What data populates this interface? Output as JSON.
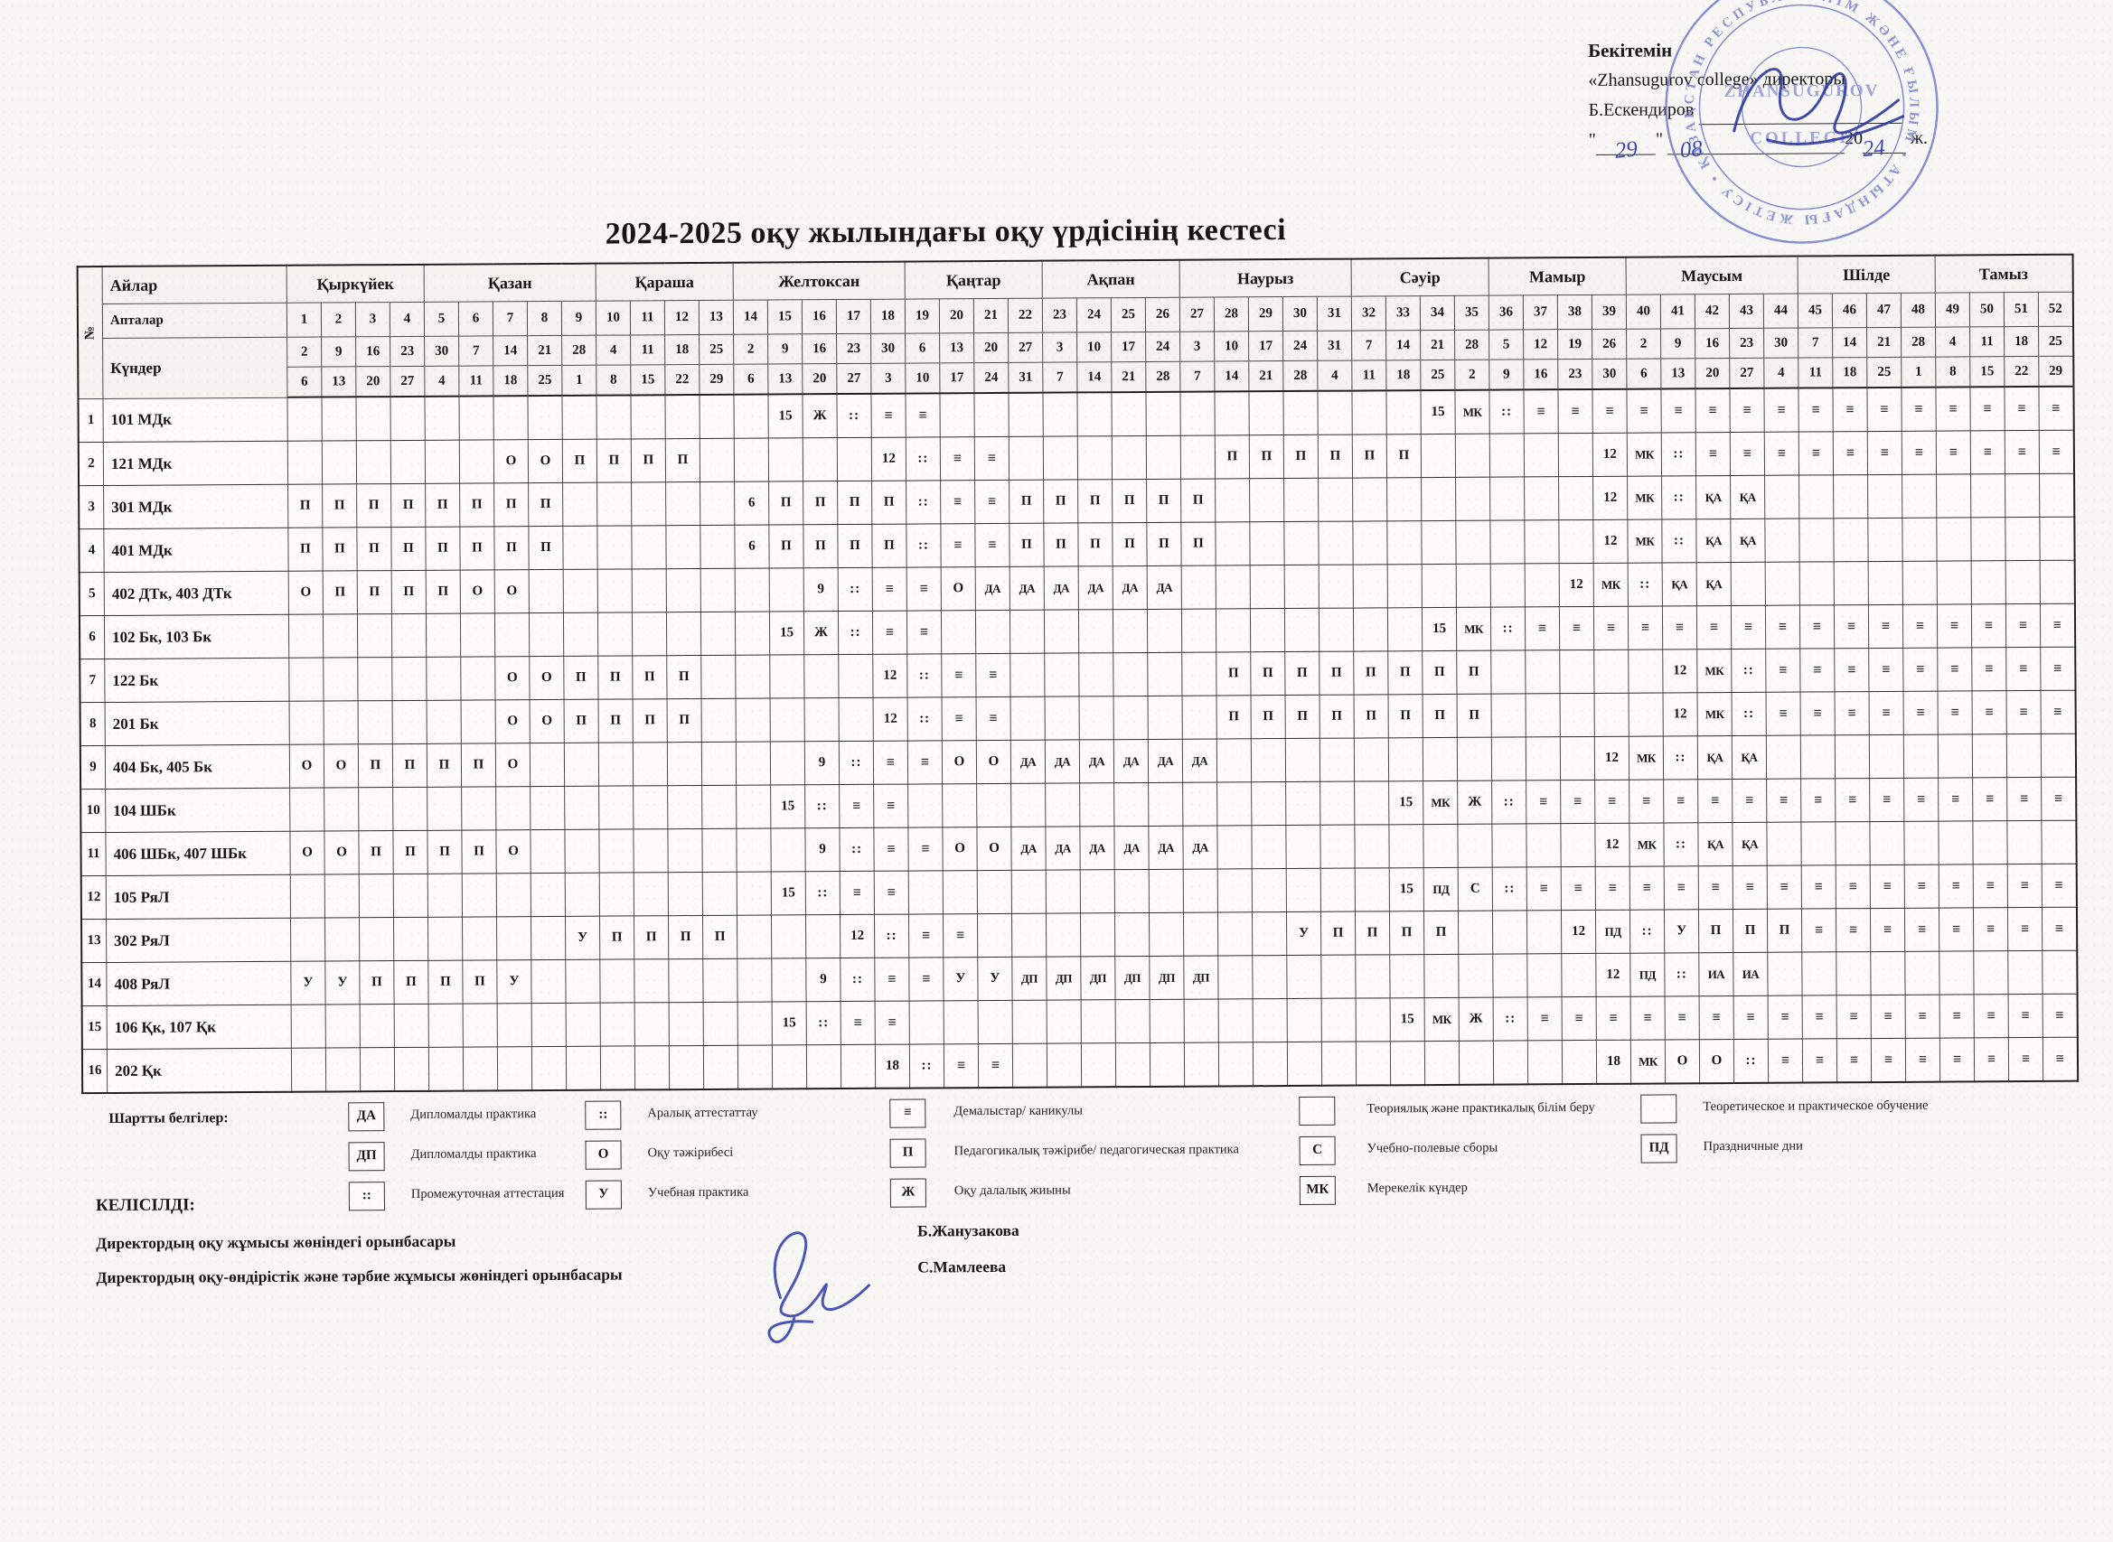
{
  "approval": {
    "approve_word": "Бекітемін",
    "org_line": "«Zhansugurov college» директоры",
    "director_name": "Б.Ескендиров",
    "hand_day": "29",
    "hand_month": "08",
    "year_prefix": "20",
    "hand_year": "24",
    "year_suffix": "ж."
  },
  "stamp": {
    "ring_text": "БІЛІМ ЖӘНЕ ҒЫЛЫМ • АТЫНДАҒЫ ЖЕТІСУ • ҚАЗАҚСТАН РЕСПУБЛИКАСЫ •",
    "center_text_1": "ZHANSUGUROV",
    "center_text_2": "COLLEGE"
  },
  "title": "2024-2025 оқу жылындағы оқу үрдісінің кестесі",
  "table": {
    "corner_label": "№",
    "side_months": "Айлар",
    "side_weeks": "Апталар",
    "side_days": "Күндер",
    "months": [
      {
        "label": "Қыркүйек",
        "span": 4
      },
      {
        "label": "Қазан",
        "span": 5
      },
      {
        "label": "Қараша",
        "span": 4
      },
      {
        "label": "Желтоксан",
        "span": 5
      },
      {
        "label": "Қаңтар",
        "span": 4
      },
      {
        "label": "Ақпан",
        "span": 4
      },
      {
        "label": "Наурыз",
        "span": 5
      },
      {
        "label": "Сәуір",
        "span": 4
      },
      {
        "label": "Мамыр",
        "span": 4
      },
      {
        "label": "Маусым",
        "span": 5
      },
      {
        "label": "Шілде",
        "span": 4
      },
      {
        "label": "Тамыз",
        "span": 4
      }
    ],
    "week_numbers": [
      1,
      2,
      3,
      4,
      5,
      6,
      7,
      8,
      9,
      10,
      11,
      12,
      13,
      14,
      15,
      16,
      17,
      18,
      19,
      20,
      21,
      22,
      23,
      24,
      25,
      26,
      27,
      28,
      29,
      30,
      31,
      32,
      33,
      34,
      35,
      36,
      37,
      38,
      39,
      40,
      41,
      42,
      43,
      44,
      45,
      46,
      47,
      48,
      49,
      50,
      51,
      52
    ],
    "week_start_dates": [
      2,
      9,
      16,
      23,
      30,
      7,
      14,
      21,
      28,
      4,
      11,
      18,
      25,
      2,
      9,
      16,
      23,
      30,
      6,
      13,
      20,
      27,
      3,
      10,
      17,
      24,
      3,
      10,
      17,
      24,
      31,
      7,
      14,
      21,
      28,
      5,
      12,
      19,
      26,
      2,
      9,
      16,
      23,
      30,
      7,
      14,
      21,
      28,
      4,
      11,
      18,
      25
    ],
    "week_end_dates": [
      6,
      13,
      20,
      27,
      4,
      11,
      18,
      25,
      1,
      8,
      15,
      22,
      29,
      6,
      13,
      20,
      27,
      3,
      10,
      17,
      24,
      31,
      7,
      14,
      21,
      28,
      7,
      14,
      21,
      28,
      4,
      11,
      18,
      25,
      2,
      9,
      16,
      23,
      30,
      6,
      13,
      20,
      27,
      4,
      11,
      18,
      25,
      1,
      8,
      15,
      22,
      29
    ],
    "rows": [
      {
        "num": "1",
        "label": "101 МДк",
        "cells": {
          "15": "15",
          "16": "Ж",
          "17": "::",
          "18": "≡",
          "19": "≡",
          "34": "15",
          "35": "МК",
          "36": "::",
          "37": "≡",
          "38": "≡",
          "39": "≡",
          "40": "≡",
          "41": "≡",
          "42": "≡",
          "43": "≡",
          "44": "≡",
          "45": "≡",
          "46": "≡",
          "47": "≡",
          "48": "≡",
          "49": "≡",
          "50": "≡",
          "51": "≡",
          "52": "≡"
        }
      },
      {
        "num": "2",
        "label": "121 МДк",
        "cells": {
          "7": "О",
          "8": "О",
          "9": "П",
          "10": "П",
          "11": "П",
          "12": "П",
          "18": "12",
          "19": "::",
          "20": "≡",
          "21": "≡",
          "28": "П",
          "29": "П",
          "30": "П",
          "31": "П",
          "32": "П",
          "33": "П",
          "39": "12",
          "40": "МК",
          "41": "::",
          "42": "≡",
          "43": "≡",
          "44": "≡",
          "45": "≡",
          "46": "≡",
          "47": "≡",
          "48": "≡",
          "49": "≡",
          "50": "≡",
          "51": "≡",
          "52": "≡"
        }
      },
      {
        "num": "3",
        "label": "301 МДк",
        "cells": {
          "1": "П",
          "2": "П",
          "3": "П",
          "4": "П",
          "5": "П",
          "6": "П",
          "7": "П",
          "8": "П",
          "14": "6",
          "15": "П",
          "16": "П",
          "17": "П",
          "18": "П",
          "19": "::",
          "20": "≡",
          "21": "≡",
          "22": "П",
          "23": "П",
          "24": "П",
          "25": "П",
          "26": "П",
          "27": "П",
          "39": "12",
          "40": "МК",
          "41": "::",
          "42": "ҚА",
          "43": "ҚА"
        }
      },
      {
        "num": "4",
        "label": "401 МДк",
        "cells": {
          "1": "П",
          "2": "П",
          "3": "П",
          "4": "П",
          "5": "П",
          "6": "П",
          "7": "П",
          "8": "П",
          "14": "6",
          "15": "П",
          "16": "П",
          "17": "П",
          "18": "П",
          "19": "::",
          "20": "≡",
          "21": "≡",
          "22": "П",
          "23": "П",
          "24": "П",
          "25": "П",
          "26": "П",
          "27": "П",
          "39": "12",
          "40": "МК",
          "41": "::",
          "42": "ҚА",
          "43": "ҚА"
        }
      },
      {
        "num": "5",
        "label": "402 ДТк, 403 ДТк",
        "cells": {
          "1": "О",
          "2": "П",
          "3": "П",
          "4": "П",
          "5": "П",
          "6": "О",
          "7": "О",
          "16": "9",
          "17": "::",
          "18": "≡",
          "19": "≡",
          "20": "О",
          "21": "ДА",
          "22": "ДА",
          "23": "ДА",
          "24": "ДА",
          "25": "ДА",
          "26": "ДА",
          "38": "12",
          "39": "МК",
          "40": "::",
          "41": "ҚА",
          "42": "ҚА"
        }
      },
      {
        "num": "6",
        "label": "102 Бк, 103 Бк",
        "cells": {
          "15": "15",
          "16": "Ж",
          "17": "::",
          "18": "≡",
          "19": "≡",
          "34": "15",
          "35": "МК",
          "36": "::",
          "37": "≡",
          "38": "≡",
          "39": "≡",
          "40": "≡",
          "41": "≡",
          "42": "≡",
          "43": "≡",
          "44": "≡",
          "45": "≡",
          "46": "≡",
          "47": "≡",
          "48": "≡",
          "49": "≡",
          "50": "≡",
          "51": "≡",
          "52": "≡"
        }
      },
      {
        "num": "7",
        "label": "122 Бк",
        "cells": {
          "7": "О",
          "8": "О",
          "9": "П",
          "10": "П",
          "11": "П",
          "12": "П",
          "18": "12",
          "19": "::",
          "20": "≡",
          "21": "≡",
          "28": "П",
          "29": "П",
          "30": "П",
          "31": "П",
          "32": "П",
          "33": "П",
          "34": "П",
          "35": "П",
          "41": "12",
          "42": "МК",
          "43": "::",
          "44": "≡",
          "45": "≡",
          "46": "≡",
          "47": "≡",
          "48": "≡",
          "49": "≡",
          "50": "≡",
          "51": "≡",
          "52": "≡"
        }
      },
      {
        "num": "8",
        "label": "201 Бк",
        "cells": {
          "7": "О",
          "8": "О",
          "9": "П",
          "10": "П",
          "11": "П",
          "12": "П",
          "18": "12",
          "19": "::",
          "20": "≡",
          "21": "≡",
          "28": "П",
          "29": "П",
          "30": "П",
          "31": "П",
          "32": "П",
          "33": "П",
          "34": "П",
          "35": "П",
          "41": "12",
          "42": "МК",
          "43": "::",
          "44": "≡",
          "45": "≡",
          "46": "≡",
          "47": "≡",
          "48": "≡",
          "49": "≡",
          "50": "≡",
          "51": "≡",
          "52": "≡"
        }
      },
      {
        "num": "9",
        "label": "404 Бк, 405 Бк",
        "cells": {
          "1": "О",
          "2": "О",
          "3": "П",
          "4": "П",
          "5": "П",
          "6": "П",
          "7": "О",
          "16": "9",
          "17": "::",
          "18": "≡",
          "19": "≡",
          "20": "О",
          "21": "О",
          "22": "ДА",
          "23": "ДА",
          "24": "ДА",
          "25": "ДА",
          "26": "ДА",
          "27": "ДА",
          "39": "12",
          "40": "МК",
          "41": "::",
          "42": "ҚА",
          "43": "ҚА"
        }
      },
      {
        "num": "10",
        "label": "104 ШБк",
        "cells": {
          "15": "15",
          "16": "::",
          "17": "≡",
          "18": "≡",
          "33": "15",
          "34": "МК",
          "35": "Ж",
          "36": "::",
          "37": "≡",
          "38": "≡",
          "39": "≡",
          "40": "≡",
          "41": "≡",
          "42": "≡",
          "43": "≡",
          "44": "≡",
          "45": "≡",
          "46": "≡",
          "47": "≡",
          "48": "≡",
          "49": "≡",
          "50": "≡",
          "51": "≡",
          "52": "≡"
        }
      },
      {
        "num": "11",
        "label": "406 ШБк, 407 ШБк",
        "cells": {
          "1": "О",
          "2": "О",
          "3": "П",
          "4": "П",
          "5": "П",
          "6": "П",
          "7": "О",
          "16": "9",
          "17": "::",
          "18": "≡",
          "19": "≡",
          "20": "О",
          "21": "О",
          "22": "ДА",
          "23": "ДА",
          "24": "ДА",
          "25": "ДА",
          "26": "ДА",
          "27": "ДА",
          "39": "12",
          "40": "МК",
          "41": "::",
          "42": "ҚА",
          "43": "ҚА"
        }
      },
      {
        "num": "12",
        "label": "105 РяЛ",
        "cells": {
          "15": "15",
          "16": "::",
          "17": "≡",
          "18": "≡",
          "33": "15",
          "34": "ПД",
          "35": "С",
          "36": "::",
          "37": "≡",
          "38": "≡",
          "39": "≡",
          "40": "≡",
          "41": "≡",
          "42": "≡",
          "43": "≡",
          "44": "≡",
          "45": "≡",
          "46": "≡",
          "47": "≡",
          "48": "≡",
          "49": "≡",
          "50": "≡",
          "51": "≡",
          "52": "≡"
        }
      },
      {
        "num": "13",
        "label": "302 РяЛ",
        "cells": {
          "9": "У",
          "10": "П",
          "11": "П",
          "12": "П",
          "13": "П",
          "17": "12",
          "18": "::",
          "19": "≡",
          "20": "≡",
          "30": "У",
          "31": "П",
          "32": "П",
          "33": "П",
          "34": "П",
          "38": "12",
          "39": "ПД",
          "40": "::",
          "41": "У",
          "42": "П",
          "43": "П",
          "44": "П",
          "45": "≡",
          "46": "≡",
          "47": "≡",
          "48": "≡",
          "49": "≡",
          "50": "≡",
          "51": "≡",
          "52": "≡"
        }
      },
      {
        "num": "14",
        "label": "408 РяЛ",
        "cells": {
          "1": "У",
          "2": "У",
          "3": "П",
          "4": "П",
          "5": "П",
          "6": "П",
          "7": "У",
          "16": "9",
          "17": "::",
          "18": "≡",
          "19": "≡",
          "20": "У",
          "21": "У",
          "22": "ДП",
          "23": "ДП",
          "24": "ДП",
          "25": "ДП",
          "26": "ДП",
          "27": "ДП",
          "39": "12",
          "40": "ПД",
          "41": "::",
          "42": "ИА",
          "43": "ИА"
        }
      },
      {
        "num": "15",
        "label": "106 Қк, 107 Қк",
        "cells": {
          "15": "15",
          "16": "::",
          "17": "≡",
          "18": "≡",
          "33": "15",
          "34": "МК",
          "35": "Ж",
          "36": "::",
          "37": "≡",
          "38": "≡",
          "39": "≡",
          "40": "≡",
          "41": "≡",
          "42": "≡",
          "43": "≡",
          "44": "≡",
          "45": "≡",
          "46": "≡",
          "47": "≡",
          "48": "≡",
          "49": "≡",
          "50": "≡",
          "51": "≡",
          "52": "≡"
        }
      },
      {
        "num": "16",
        "label": "202 Қк",
        "cells": {
          "18": "18",
          "19": "::",
          "20": "≡",
          "21": "≡",
          "39": "18",
          "40": "МК",
          "41": "О",
          "42": "О",
          "43": "::",
          "44": "≡",
          "45": "≡",
          "46": "≡",
          "47": "≡",
          "48": "≡",
          "49": "≡",
          "50": "≡",
          "51": "≡",
          "52": "≡"
        }
      }
    ]
  },
  "legend": {
    "title": "Шартты белгілер:",
    "items": [
      {
        "symbol": "ДА",
        "label": "Дипломалды практика",
        "col": 1,
        "row": 1
      },
      {
        "symbol": "ДП",
        "label": "Дипломалды практика",
        "col": 1,
        "row": 2
      },
      {
        "symbol": "::",
        "label": "Промежуточная аттестация",
        "col": 1,
        "row": 3
      },
      {
        "symbol": "::",
        "label": "Аралық аттестаттау",
        "col": 2,
        "row": 1
      },
      {
        "symbol": "О",
        "label": "Оқу тәжірибесі",
        "col": 2,
        "row": 2
      },
      {
        "symbol": "У",
        "label": "Учебная практика",
        "col": 2,
        "row": 3
      },
      {
        "symbol": "≡",
        "label": "Демалыстар/ каникулы",
        "col": 3,
        "row": 1
      },
      {
        "symbol": "П",
        "label": "Педагогикалық тәжірибе/ педагогическая практика",
        "col": 3,
        "row": 2
      },
      {
        "symbol": "Ж",
        "label": "Оқу далалық жиыны",
        "col": 3,
        "row": 3
      },
      {
        "symbol": "",
        "label": "Теориялық және практикалық білім беру",
        "col": 4,
        "row": 1
      },
      {
        "symbol": "С",
        "label": "Учебно-полевые сборы",
        "col": 4,
        "row": 2
      },
      {
        "symbol": "МК",
        "label": "Мерекелік күндер",
        "col": 4,
        "row": 3
      },
      {
        "symbol": "",
        "label": "Теоретическое и практическое обучение",
        "col": 5,
        "row": 1
      },
      {
        "symbol": "ПД",
        "label": "Праздничные дни",
        "col": 5,
        "row": 2
      }
    ]
  },
  "agreed": {
    "title": "КЕЛІСІЛДІ:",
    "lines": [
      {
        "role": "Директордың оқу жұмысы жөніндегі орынбасары",
        "name": "Б.Жанузакова"
      },
      {
        "role": "Директордың оқу-өндірістік және тәрбие жұмысы жөніндегі орынбасары",
        "name": "С.Мамлеева"
      }
    ]
  }
}
